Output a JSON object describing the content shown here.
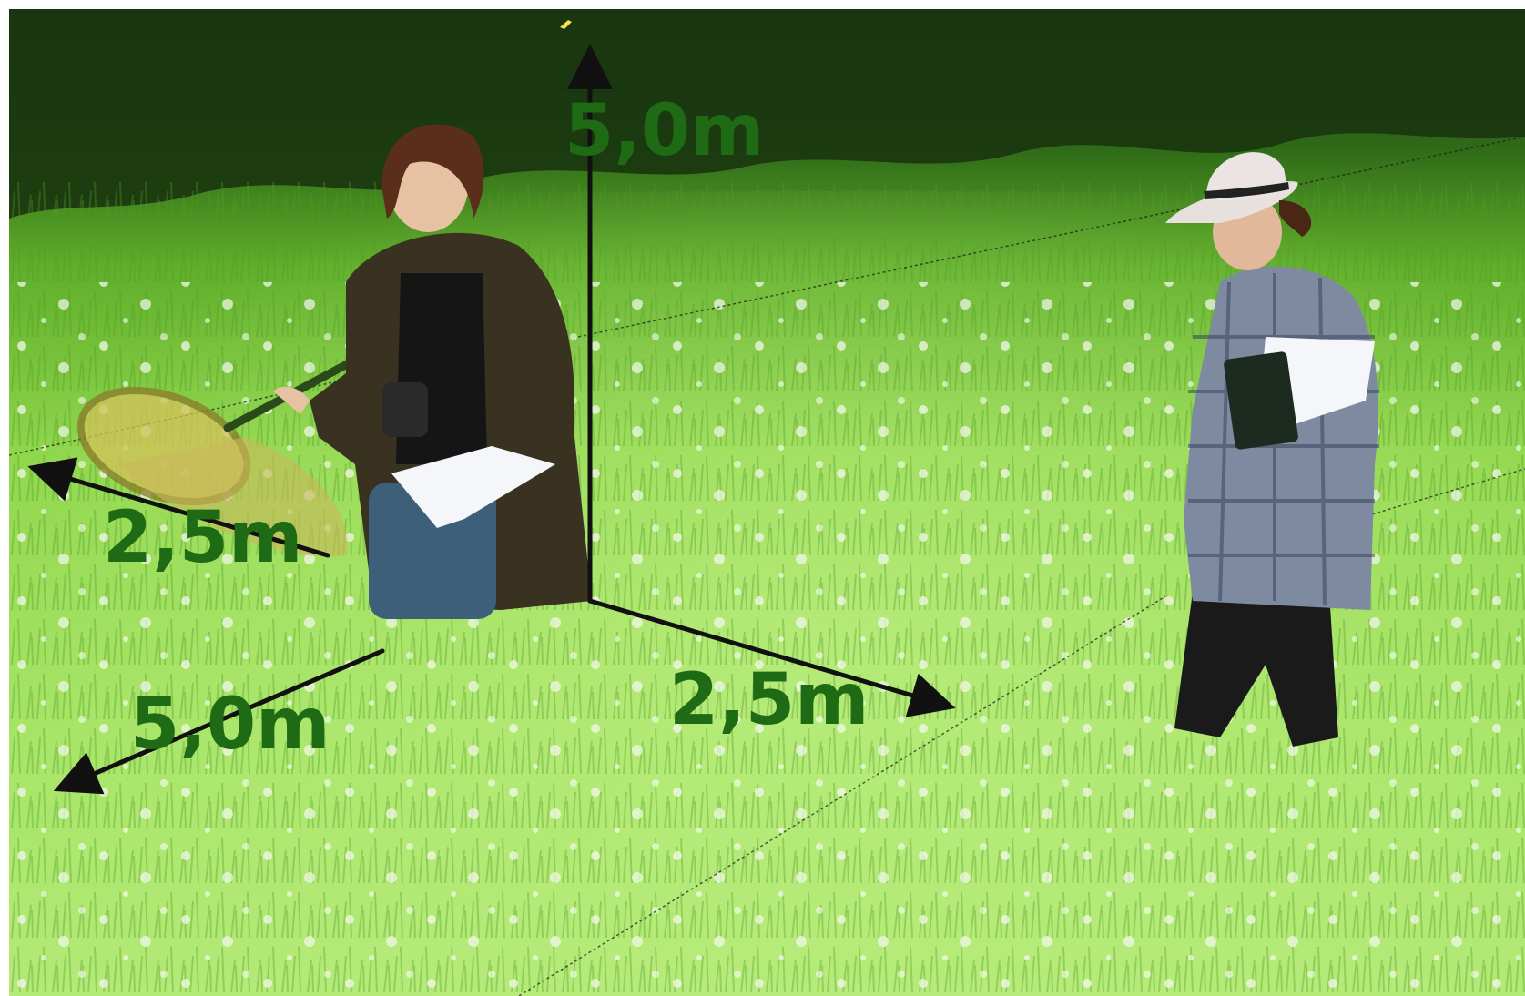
{
  "scene": {
    "description_free": true,
    "colors": {
      "grass_light": "#9fe05a",
      "grass_mid": "#6cc02c",
      "grass_dark": "#2f6a18",
      "treeline": "#1e3d12",
      "label_green": "#1f6a14",
      "arrow": "#111111"
    }
  },
  "labels": {
    "height_top": "5,0m",
    "width_left": "2,5m",
    "depth_left": "5,0m",
    "width_right": "2,5m"
  }
}
